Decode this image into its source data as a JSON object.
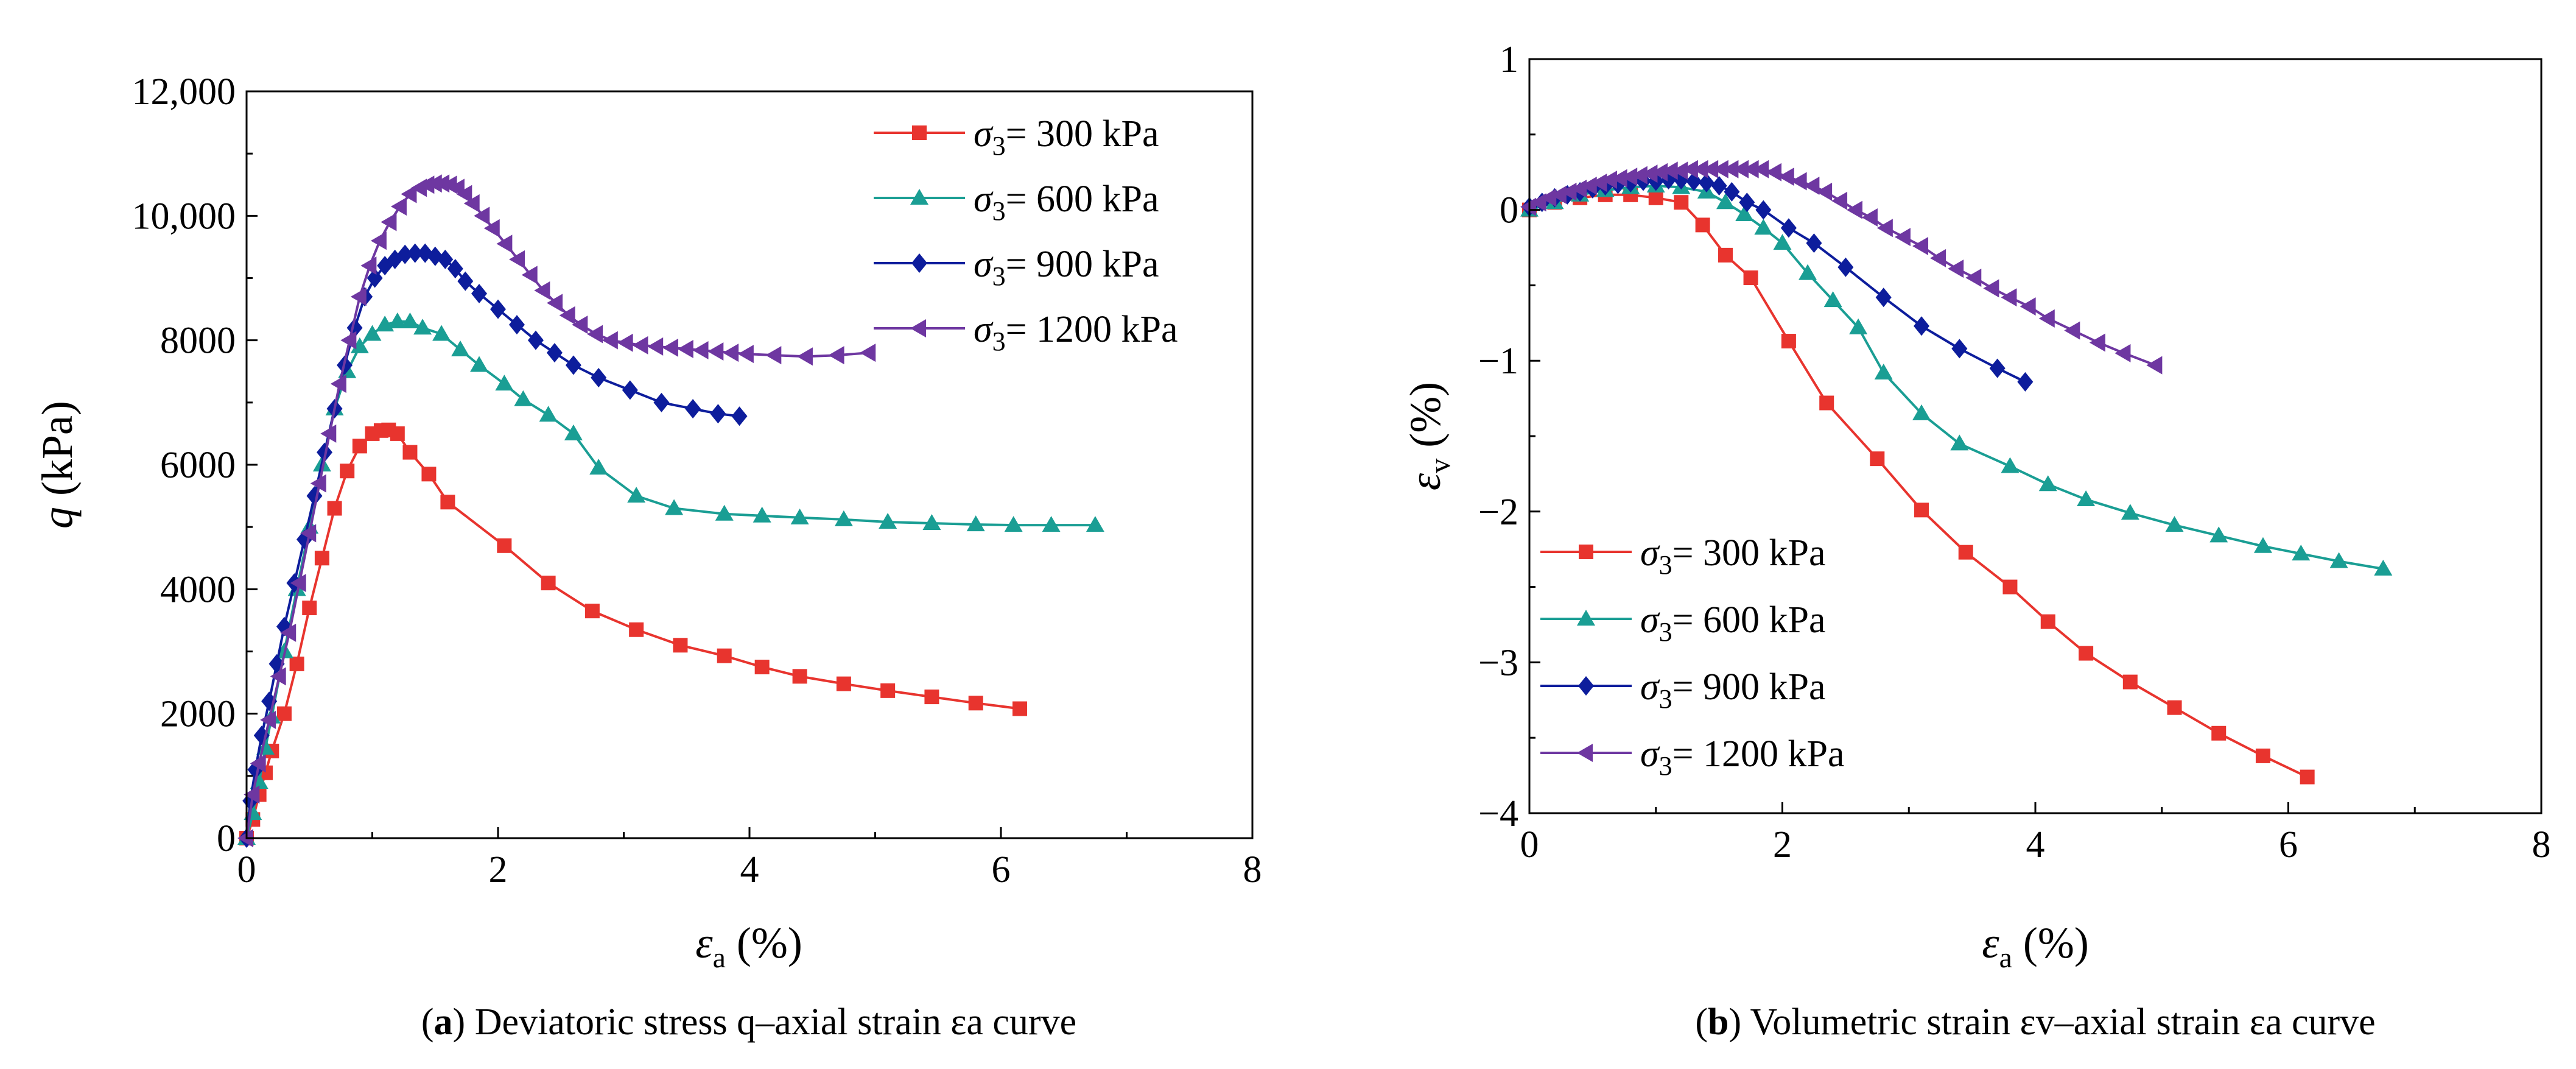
{
  "figure": {
    "panels": [
      {
        "caption_letter": "a",
        "caption_text": " Deviatoric stress q–axial strain εa curve"
      },
      {
        "caption_letter": "b",
        "caption_text": " Volumetric strain εv–axial strain εa curve"
      }
    ]
  },
  "chart_data": [
    {
      "type": "line",
      "title": "",
      "xlabel": "εa (%)",
      "ylabel": "q (kPa)",
      "xlim": [
        0,
        8
      ],
      "ylim": [
        0,
        12000
      ],
      "xticks": [
        "0",
        "2",
        "4",
        "6",
        "8"
      ],
      "yticks": [
        "0",
        "2000",
        "4000",
        "6000",
        "8000",
        "10,000",
        "12,000"
      ],
      "grid": false,
      "legend_position": "top-right",
      "series": [
        {
          "name": "σ3= 300 kPa",
          "prefix": "σ",
          "sub": "3",
          "suffix": "= 300 kPa",
          "color": "#e8342e",
          "marker": "square",
          "x": [
            0,
            0.05,
            0.1,
            0.15,
            0.2,
            0.3,
            0.4,
            0.5,
            0.6,
            0.7,
            0.8,
            0.9,
            1.0,
            1.07,
            1.13,
            1.2,
            1.3,
            1.45,
            1.6,
            2.05,
            2.4,
            2.75,
            3.1,
            3.45,
            3.8,
            4.1,
            4.4,
            4.75,
            5.1,
            5.45,
            5.8,
            6.15
          ],
          "y": [
            0,
            300,
            700,
            1050,
            1400,
            2000,
            2800,
            3700,
            4500,
            5300,
            5900,
            6300,
            6500,
            6550,
            6560,
            6500,
            6200,
            5850,
            5400,
            4700,
            4100,
            3650,
            3350,
            3100,
            2930,
            2750,
            2600,
            2480,
            2370,
            2270,
            2170,
            2080
          ]
        },
        {
          "name": "σ3= 600 kPa",
          "prefix": "σ",
          "sub": "3",
          "suffix": "= 600 kPa",
          "color": "#1a9e94",
          "marker": "triangle",
          "x": [
            0,
            0.05,
            0.1,
            0.15,
            0.2,
            0.3,
            0.4,
            0.5,
            0.6,
            0.7,
            0.8,
            0.9,
            1.0,
            1.1,
            1.2,
            1.3,
            1.4,
            1.55,
            1.7,
            1.85,
            2.05,
            2.2,
            2.4,
            2.6,
            2.8,
            3.1,
            3.4,
            3.8,
            4.1,
            4.4,
            4.75,
            5.1,
            5.45,
            5.8,
            6.1,
            6.4,
            6.75
          ],
          "y": [
            0,
            400,
            900,
            1450,
            1950,
            3000,
            4000,
            5000,
            6000,
            6900,
            7500,
            7900,
            8100,
            8250,
            8300,
            8300,
            8200,
            8100,
            7850,
            7600,
            7300,
            7050,
            6800,
            6500,
            5950,
            5500,
            5300,
            5210,
            5180,
            5150,
            5120,
            5080,
            5060,
            5040,
            5030,
            5030,
            5030
          ]
        },
        {
          "name": "σ3= 900 kPa",
          "prefix": "σ",
          "sub": "3",
          "suffix": "= 900 kPa",
          "color": "#0d1d9c",
          "marker": "diamond",
          "x": [
            0,
            0.03,
            0.07,
            0.12,
            0.18,
            0.24,
            0.3,
            0.38,
            0.46,
            0.54,
            0.62,
            0.7,
            0.78,
            0.86,
            0.94,
            1.02,
            1.1,
            1.18,
            1.26,
            1.34,
            1.42,
            1.5,
            1.58,
            1.66,
            1.74,
            1.85,
            2.0,
            2.15,
            2.3,
            2.45,
            2.6,
            2.8,
            3.05,
            3.3,
            3.55,
            3.75,
            3.92
          ],
          "y": [
            0,
            600,
            1100,
            1650,
            2200,
            2800,
            3400,
            4100,
            4800,
            5500,
            6200,
            6900,
            7600,
            8200,
            8700,
            9000,
            9200,
            9300,
            9380,
            9400,
            9400,
            9350,
            9300,
            9150,
            8950,
            8750,
            8500,
            8250,
            8000,
            7800,
            7600,
            7400,
            7200,
            7000,
            6900,
            6820,
            6780
          ]
        },
        {
          "name": "σ3= 1200 kPa",
          "prefix": "σ",
          "sub": "3",
          "suffix": "= 1200 kPa",
          "color": "#6e37a1",
          "marker": "triangle-left",
          "x": [
            0,
            0.05,
            0.1,
            0.18,
            0.26,
            0.34,
            0.42,
            0.5,
            0.58,
            0.66,
            0.74,
            0.82,
            0.9,
            0.98,
            1.06,
            1.14,
            1.22,
            1.3,
            1.38,
            1.44,
            1.5,
            1.56,
            1.62,
            1.68,
            1.74,
            1.8,
            1.88,
            1.96,
            2.06,
            2.16,
            2.26,
            2.36,
            2.46,
            2.56,
            2.66,
            2.78,
            2.9,
            3.02,
            3.14,
            3.26,
            3.38,
            3.5,
            3.62,
            3.74,
            3.86,
            3.98,
            4.2,
            4.45,
            4.7,
            4.95
          ],
          "y": [
            0,
            700,
            1200,
            1900,
            2600,
            3300,
            4100,
            4900,
            5700,
            6500,
            7300,
            8000,
            8700,
            9200,
            9600,
            9900,
            10150,
            10350,
            10450,
            10500,
            10520,
            10520,
            10500,
            10450,
            10350,
            10200,
            10000,
            9800,
            9550,
            9300,
            9050,
            8800,
            8600,
            8400,
            8250,
            8100,
            8000,
            7960,
            7920,
            7900,
            7880,
            7860,
            7840,
            7820,
            7800,
            7780,
            7760,
            7740,
            7760,
            7800
          ]
        }
      ]
    },
    {
      "type": "line",
      "title": "",
      "xlabel": "εa (%)",
      "ylabel": "εv (%)",
      "xlim": [
        0,
        8
      ],
      "ylim": [
        -4,
        1
      ],
      "xticks": [
        "0",
        "2",
        "4",
        "6",
        "8"
      ],
      "yticks": [
        "−4",
        "−3",
        "−2",
        "−1",
        "0",
        "1"
      ],
      "grid": false,
      "legend_position": "bottom-left",
      "series": [
        {
          "name": "σ3= 300 kPa",
          "prefix": "σ",
          "sub": "3",
          "suffix": "= 300 kPa",
          "color": "#e8342e",
          "marker": "square",
          "x": [
            0,
            0.2,
            0.4,
            0.6,
            0.8,
            1.0,
            1.2,
            1.37,
            1.55,
            1.75,
            2.05,
            2.35,
            2.75,
            3.1,
            3.45,
            3.8,
            4.1,
            4.4,
            4.75,
            5.1,
            5.45,
            5.8,
            6.15
          ],
          "y": [
            0,
            0.05,
            0.08,
            0.1,
            0.1,
            0.08,
            0.05,
            -0.1,
            -0.3,
            -0.45,
            -0.87,
            -1.28,
            -1.65,
            -1.99,
            -2.27,
            -2.5,
            -2.73,
            -2.94,
            -3.13,
            -3.3,
            -3.47,
            -3.62,
            -3.76
          ]
        },
        {
          "name": "σ3= 600 kPa",
          "prefix": "σ",
          "sub": "3",
          "suffix": "= 600 kPa",
          "color": "#1a9e94",
          "marker": "triangle",
          "x": [
            0,
            0.2,
            0.4,
            0.6,
            0.8,
            1.0,
            1.2,
            1.4,
            1.55,
            1.7,
            1.85,
            2.0,
            2.2,
            2.4,
            2.6,
            2.8,
            3.1,
            3.4,
            3.8,
            4.1,
            4.4,
            4.75,
            5.1,
            5.45,
            5.8,
            6.1,
            6.4,
            6.75
          ],
          "y": [
            0,
            0.05,
            0.1,
            0.13,
            0.15,
            0.16,
            0.15,
            0.12,
            0.05,
            -0.03,
            -0.12,
            -0.22,
            -0.42,
            -0.6,
            -0.78,
            -1.08,
            -1.35,
            -1.55,
            -1.7,
            -1.82,
            -1.92,
            -2.01,
            -2.09,
            -2.16,
            -2.23,
            -2.28,
            -2.33,
            -2.38
          ]
        },
        {
          "name": "σ3= 900 kPa",
          "prefix": "σ",
          "sub": "3",
          "suffix": "= 900 kPa",
          "color": "#0d1d9c",
          "marker": "diamond",
          "x": [
            0,
            0.1,
            0.2,
            0.3,
            0.4,
            0.5,
            0.6,
            0.7,
            0.8,
            0.9,
            1.0,
            1.1,
            1.2,
            1.3,
            1.4,
            1.5,
            1.6,
            1.72,
            1.85,
            2.05,
            2.25,
            2.5,
            2.8,
            3.1,
            3.4,
            3.7,
            3.92
          ],
          "y": [
            0.02,
            0.05,
            0.08,
            0.1,
            0.12,
            0.14,
            0.16,
            0.17,
            0.18,
            0.19,
            0.19,
            0.2,
            0.2,
            0.19,
            0.18,
            0.16,
            0.12,
            0.05,
            0,
            -0.12,
            -0.22,
            -0.38,
            -0.58,
            -0.77,
            -0.92,
            -1.05,
            -1.14
          ]
        },
        {
          "name": "σ3= 1200 kPa",
          "prefix": "σ",
          "sub": "3",
          "suffix": "= 1200 kPa",
          "color": "#6e37a1",
          "marker": "triangle-left",
          "x": [
            0,
            0.08,
            0.16,
            0.24,
            0.32,
            0.4,
            0.48,
            0.56,
            0.64,
            0.72,
            0.8,
            0.88,
            0.96,
            1.04,
            1.12,
            1.2,
            1.28,
            1.36,
            1.44,
            1.52,
            1.6,
            1.68,
            1.76,
            1.84,
            1.94,
            2.04,
            2.14,
            2.24,
            2.34,
            2.46,
            2.58,
            2.7,
            2.82,
            2.96,
            3.1,
            3.24,
            3.38,
            3.52,
            3.66,
            3.8,
            3.95,
            4.1,
            4.3,
            4.5,
            4.7,
            4.95
          ],
          "y": [
            0.02,
            0.05,
            0.08,
            0.1,
            0.12,
            0.14,
            0.16,
            0.18,
            0.2,
            0.21,
            0.22,
            0.23,
            0.24,
            0.25,
            0.26,
            0.26,
            0.27,
            0.27,
            0.27,
            0.27,
            0.27,
            0.27,
            0.27,
            0.27,
            0.25,
            0.22,
            0.19,
            0.16,
            0.12,
            0.06,
            0,
            -0.05,
            -0.12,
            -0.18,
            -0.24,
            -0.32,
            -0.39,
            -0.45,
            -0.52,
            -0.58,
            -0.64,
            -0.72,
            -0.8,
            -0.88,
            -0.95,
            -1.03
          ]
        }
      ]
    }
  ]
}
